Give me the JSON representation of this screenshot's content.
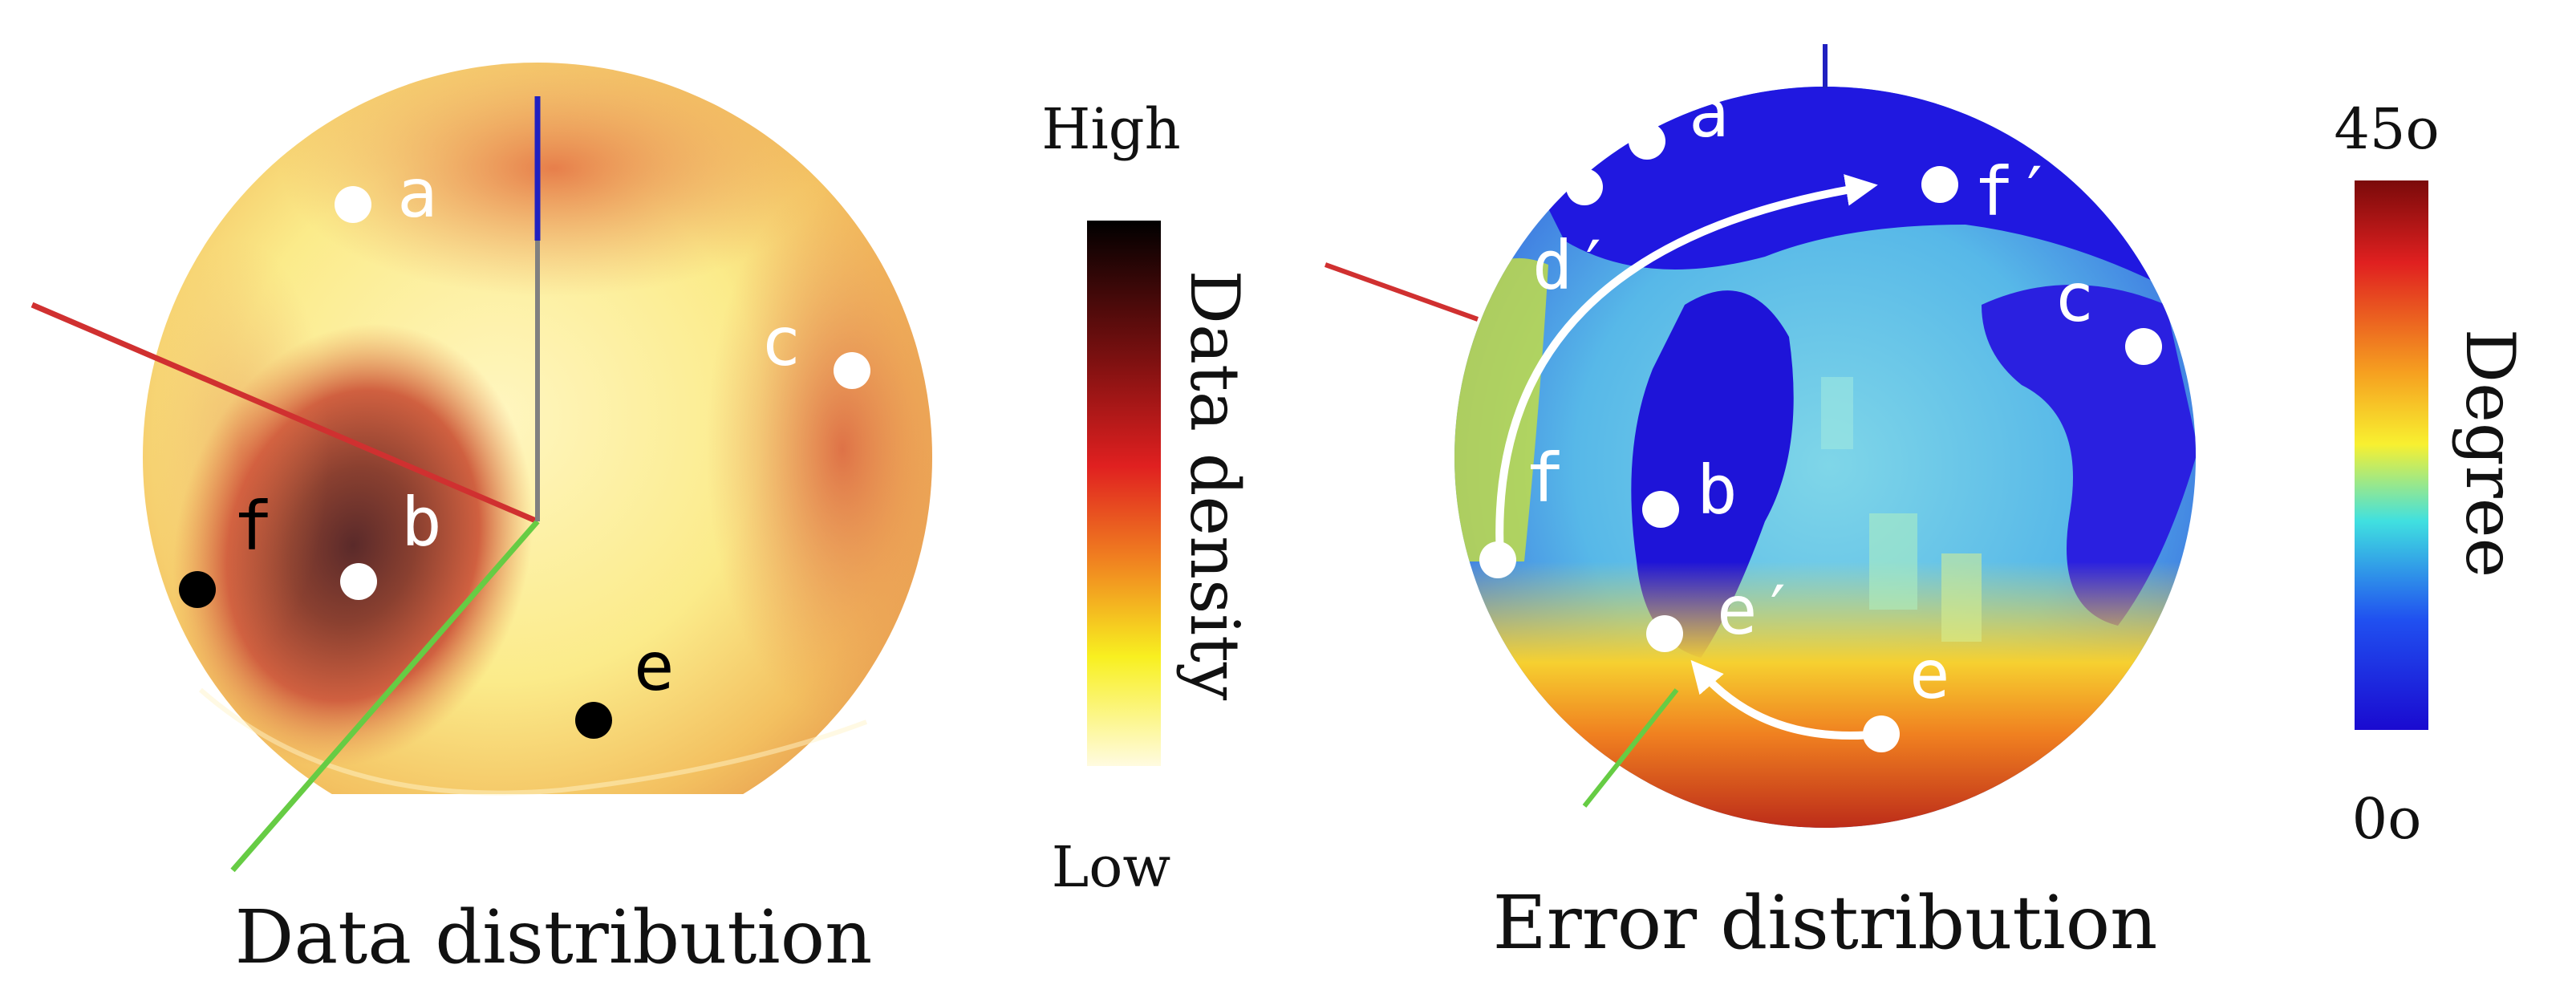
{
  "left_panel": {
    "caption": "Data distribution",
    "colorbar": {
      "top_label": "High",
      "bottom_label": "Low",
      "axis_title": "Data density"
    },
    "points": [
      {
        "label": "a",
        "marker": "white"
      },
      {
        "label": "b",
        "marker": "white"
      },
      {
        "label": "c",
        "marker": "white"
      },
      {
        "label": "e",
        "marker": "black"
      },
      {
        "label": "f",
        "marker": "black"
      }
    ]
  },
  "right_panel": {
    "caption": "Error distribution",
    "colorbar": {
      "top_label": "45o",
      "bottom_label": "0o",
      "axis_title": "Degree"
    },
    "points": [
      {
        "label": "a"
      },
      {
        "label": "b"
      },
      {
        "label": "c"
      },
      {
        "label": "d′"
      },
      {
        "label": "e"
      },
      {
        "label": "e′"
      },
      {
        "label": "f"
      },
      {
        "label": "f′"
      }
    ],
    "arrows": [
      {
        "from": "f",
        "to": "f′"
      },
      {
        "from": "e",
        "to": "e′"
      }
    ]
  },
  "colors": {
    "axis_x": "#d03030",
    "axis_y": "#66cc44",
    "axis_z": "#2020c0"
  }
}
